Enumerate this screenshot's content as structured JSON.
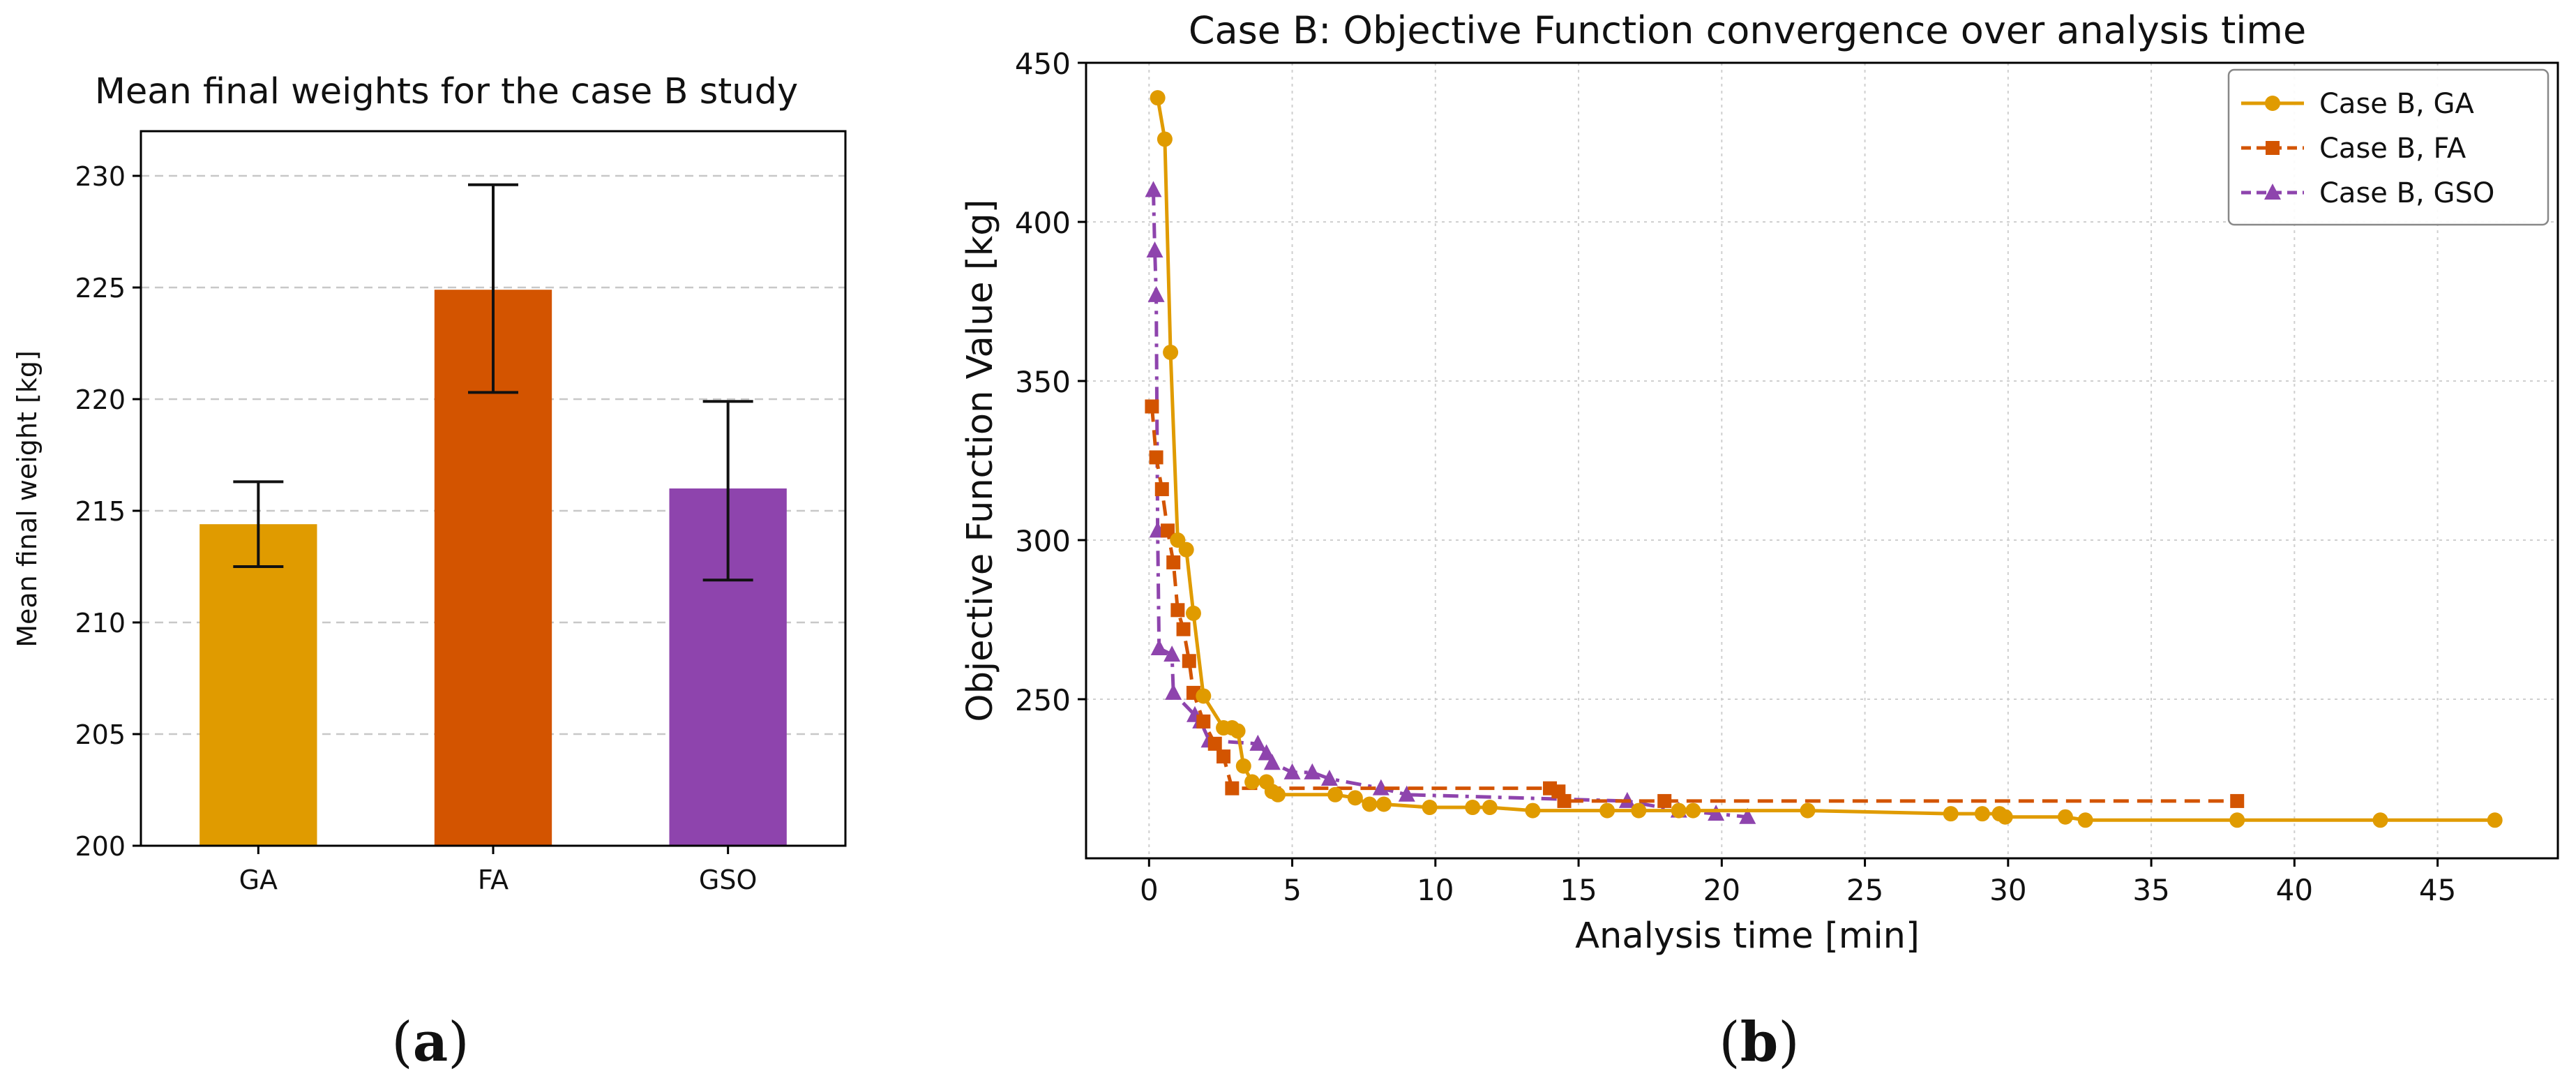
{
  "panels": {
    "a": {
      "open": "(",
      "letter": "a",
      "close": ")"
    },
    "b": {
      "open": "(",
      "letter": "b",
      "close": ")"
    }
  },
  "chart_data": [
    {
      "type": "bar",
      "title": "Mean final weights for the case B study",
      "xlabel": "",
      "ylabel": "Mean final weight [kg]",
      "categories": [
        "GA",
        "FA",
        "GSO"
      ],
      "values": [
        214.4,
        224.9,
        216.0
      ],
      "error_low": [
        212.5,
        220.3,
        211.9
      ],
      "error_high": [
        216.3,
        229.6,
        219.9
      ],
      "colors": [
        "#E09B00",
        "#D35400",
        "#8E44AD"
      ],
      "ylim": [
        200,
        232
      ],
      "yticks": [
        200,
        205,
        210,
        215,
        220,
        225,
        230
      ],
      "grid": "y-dashed"
    },
    {
      "type": "line",
      "title": "Case B: Objective Function convergence over analysis time",
      "xlabel": "Analysis time [min]",
      "ylabel": "Objective Function Value [kg]",
      "xlim": [
        -2.2,
        49.2
      ],
      "ylim": [
        200,
        450
      ],
      "xticks": [
        0,
        5,
        10,
        15,
        20,
        25,
        30,
        35,
        40,
        45
      ],
      "yticks": [
        250,
        300,
        350,
        400,
        450
      ],
      "grid": "both-dotted",
      "legend": "top-right",
      "series": [
        {
          "name": "Case B, GA",
          "color": "#E09B00",
          "marker": "circle",
          "line": "solid",
          "x": [
            0.3,
            0.55,
            0.75,
            1.0,
            1.3,
            1.55,
            1.9,
            2.6,
            2.9,
            3.1,
            3.3,
            3.6,
            4.1,
            4.3,
            4.5,
            6.5,
            7.2,
            7.7,
            8.2,
            9.8,
            11.3,
            11.9,
            13.4,
            16.0,
            17.1,
            18.5,
            19.0,
            23.0,
            28.0,
            29.1,
            29.7,
            29.9,
            32.0,
            32.7,
            38.0,
            43.0,
            47.0
          ],
          "y": [
            439,
            426,
            359,
            300,
            297,
            277,
            251,
            241,
            241,
            240,
            229,
            224,
            224,
            221,
            220,
            220,
            219,
            217,
            217,
            216,
            216,
            216,
            215,
            215,
            215,
            215,
            215,
            215,
            214,
            214,
            214,
            213,
            213,
            212,
            212,
            212,
            212
          ]
        },
        {
          "name": "Case B, FA",
          "color": "#D35400",
          "marker": "square",
          "line": "dashed",
          "x": [
            0.1,
            0.25,
            0.45,
            0.65,
            0.85,
            1.0,
            1.2,
            1.4,
            1.55,
            1.9,
            2.3,
            2.6,
            2.9,
            14.0,
            14.3,
            14.5,
            18.0,
            38.0
          ],
          "y": [
            342,
            326,
            316,
            303,
            293,
            278,
            272,
            262,
            252,
            243,
            236,
            232,
            222,
            222,
            221,
            218,
            218,
            218
          ]
        },
        {
          "name": "Case B, GSO",
          "color": "#8E44AD",
          "marker": "triangle",
          "line": "dashdot",
          "x": [
            0.15,
            0.2,
            0.25,
            0.3,
            0.35,
            0.8,
            0.85,
            1.6,
            1.8,
            2.1,
            3.8,
            4.1,
            4.3,
            5.0,
            5.7,
            6.3,
            8.1,
            9.0,
            16.7,
            18.5,
            19.8,
            20.9
          ],
          "y": [
            410,
            391,
            377,
            303,
            266,
            264,
            252,
            245,
            243,
            237,
            236,
            233,
            230,
            227,
            227,
            225,
            222,
            220,
            218,
            215,
            214,
            213
          ]
        }
      ]
    }
  ]
}
